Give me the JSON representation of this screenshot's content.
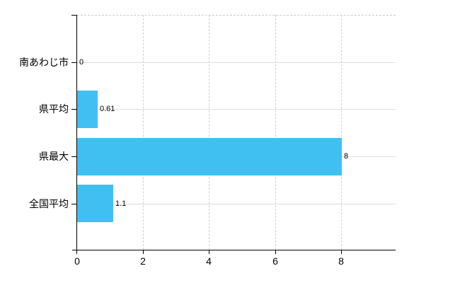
{
  "chart_data": {
    "type": "bar",
    "orientation": "horizontal",
    "title": "",
    "xlabel": "",
    "ylabel": "",
    "categories": [
      "南あわじ市",
      "県平均",
      "県最大",
      "全国平均"
    ],
    "values": [
      0,
      0.61,
      8,
      1.1
    ],
    "value_labels": [
      "0",
      "0.61",
      "8",
      "1.1"
    ],
    "x_ticks": [
      "0",
      "2",
      "4",
      "6",
      "8"
    ],
    "x_tick_values": [
      0,
      2,
      4,
      6,
      8
    ],
    "xlim": [
      0,
      9.65
    ],
    "grid": true,
    "legend": false,
    "bar_color": "#40c0f0",
    "hgrid_color": "#d9e1d9",
    "vgrid_color": "#d5cdd5",
    "axis_color": "#000000"
  }
}
